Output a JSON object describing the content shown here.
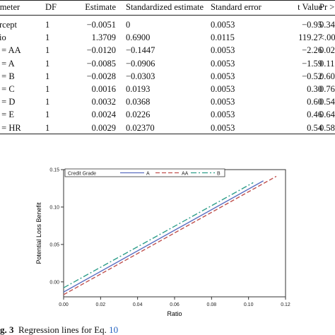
{
  "table": {
    "headers": [
      "rameter",
      "DF",
      "Estimate",
      "Standardized estimate",
      "Standard error",
      "t Value",
      "Pr >"
    ],
    "rows": [
      [
        "tercept",
        "1",
        "−0.0051",
        "0",
        "0.0053",
        "−0.95",
        "0.34"
      ],
      [
        "atio",
        "1",
        "1.3709",
        "0.6900",
        "0.0115",
        "119.27",
        "<.00"
      ],
      [
        "G = AA",
        "1",
        "−0.0120",
        "−0.1447",
        "0.0053",
        "−2.26",
        "0.02"
      ],
      [
        "G = A",
        "1",
        "−0.0085",
        "−0.0906",
        "0.0053",
        "−1.59",
        "0.11"
      ],
      [
        "G = B",
        "1",
        "−0.0028",
        "−0.0303",
        "0.0053",
        "−0.52",
        "0.60"
      ],
      [
        "G = C",
        "1",
        "0.0016",
        "0.0193",
        "0.0053",
        "0.30",
        "0.76"
      ],
      [
        "G = D",
        "1",
        "0.0032",
        "0.0368",
        "0.0053",
        "0.60",
        "0.54"
      ],
      [
        "G = E",
        "1",
        "0.0024",
        "0.0226",
        "0.0053",
        "0.46",
        "0.64"
      ],
      [
        "G = HR",
        "1",
        "0.0029",
        "0.02370",
        "0.0053",
        "0.54",
        "0.58"
      ]
    ]
  },
  "chart_data": {
    "type": "line",
    "title": "",
    "xlabel": "Ratio",
    "ylabel": "Potential Loss Benefit",
    "xlim": [
      0.0,
      0.12
    ],
    "ylim": [
      -0.02,
      0.15
    ],
    "xticks": [
      "0.00",
      "0.02",
      "0.04",
      "0.06",
      "0.08",
      "0.10",
      "0.12"
    ],
    "yticks": [
      "0.00",
      "0.05",
      "0.10",
      "0.15"
    ],
    "legend_title": "Credit Grade",
    "legend_position": "top",
    "grid": false,
    "series": [
      {
        "name": "A",
        "color": "#5b6ec0",
        "dash": "solid",
        "x": [
          0.0,
          0.108
        ],
        "y": [
          -0.0136,
          0.135
        ]
      },
      {
        "name": "AA",
        "color": "#c0504d",
        "dash": "dashed",
        "x": [
          0.0,
          0.115
        ],
        "y": [
          -0.0171,
          0.141
        ]
      },
      {
        "name": "B",
        "color": "#2e9e8a",
        "dash": "dashdot",
        "x": [
          0.0,
          0.1025
        ],
        "y": [
          -0.0079,
          0.1326
        ]
      }
    ]
  },
  "caption": {
    "label": "g. 3",
    "text": "Regression lines for Eq.",
    "eq_ref": "10"
  }
}
